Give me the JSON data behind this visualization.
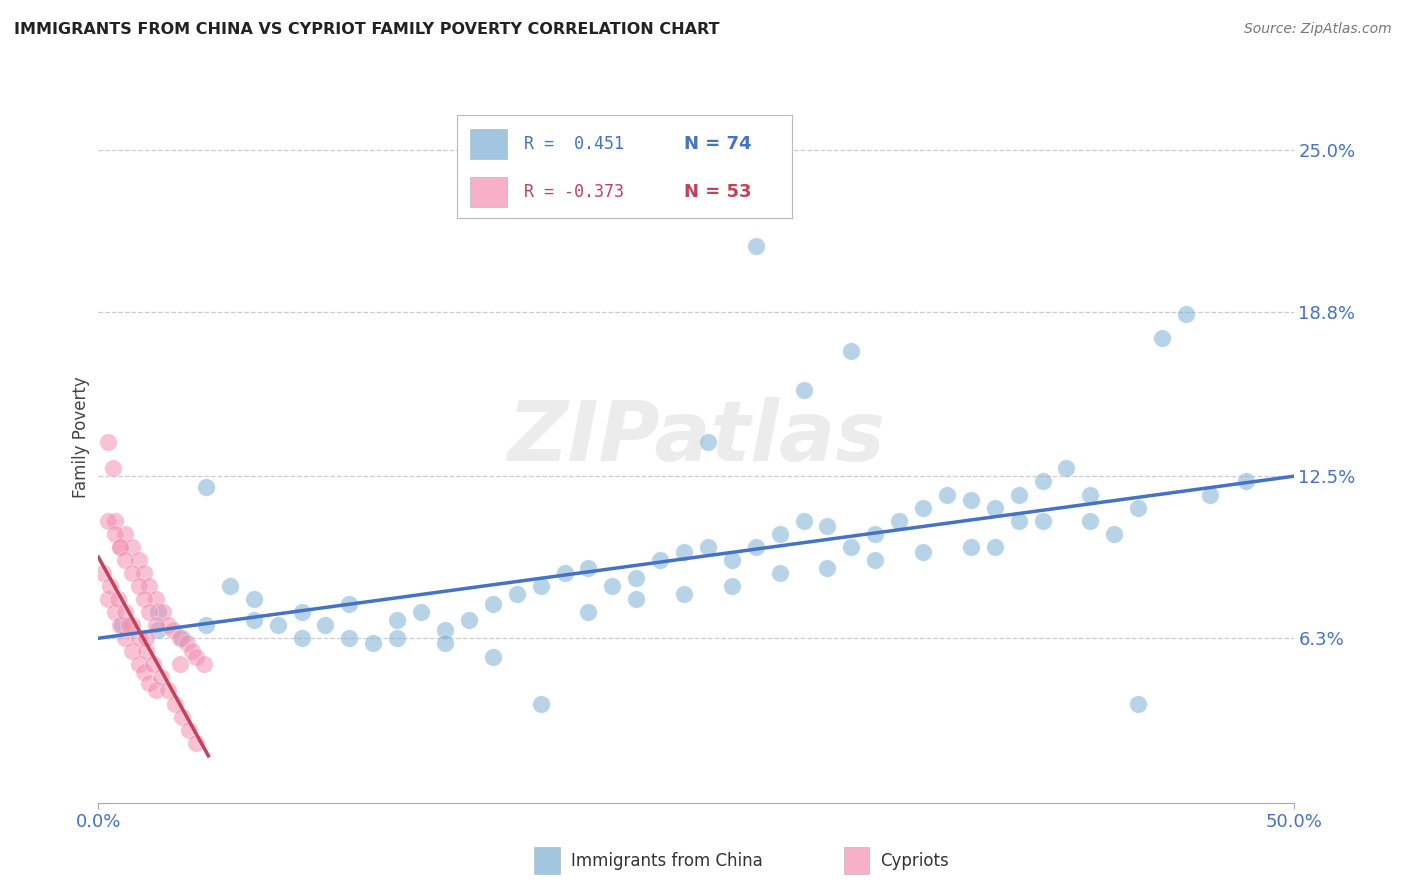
{
  "title": "IMMIGRANTS FROM CHINA VS CYPRIOT FAMILY POVERTY CORRELATION CHART",
  "source": "Source: ZipAtlas.com",
  "ylabel": "Family Poverty",
  "ytick_labels": [
    "6.3%",
    "12.5%",
    "18.8%",
    "25.0%"
  ],
  "ytick_values": [
    0.063,
    0.125,
    0.188,
    0.25
  ],
  "xlim": [
    0.0,
    0.5
  ],
  "ylim": [
    0.0,
    0.28
  ],
  "legend_blue_r": "R =  0.451",
  "legend_blue_n": "N = 74",
  "legend_pink_r": "R = -0.373",
  "legend_pink_n": "N = 53",
  "blue_color": "#7BAFD4",
  "pink_color": "#F48FB1",
  "blue_line_color": "#4472C4",
  "pink_line_color": "#C0435A",
  "tick_color": "#4472C4",
  "grid_color": "#CCCCCC",
  "background_color": "#FFFFFF",
  "watermark": "ZIPatlas",
  "blue_scatter_x": [
    0.01,
    0.045,
    0.035,
    0.055,
    0.025,
    0.065,
    0.075,
    0.085,
    0.095,
    0.105,
    0.115,
    0.125,
    0.135,
    0.145,
    0.155,
    0.165,
    0.175,
    0.185,
    0.195,
    0.205,
    0.215,
    0.225,
    0.235,
    0.245,
    0.255,
    0.265,
    0.275,
    0.285,
    0.295,
    0.305,
    0.315,
    0.325,
    0.335,
    0.345,
    0.355,
    0.365,
    0.375,
    0.385,
    0.395,
    0.405,
    0.415,
    0.425,
    0.435,
    0.445,
    0.455,
    0.025,
    0.045,
    0.065,
    0.085,
    0.105,
    0.125,
    0.145,
    0.165,
    0.185,
    0.205,
    0.225,
    0.245,
    0.265,
    0.285,
    0.305,
    0.325,
    0.345,
    0.365,
    0.385,
    0.275,
    0.295,
    0.315,
    0.255,
    0.375,
    0.395,
    0.415,
    0.435,
    0.465,
    0.48
  ],
  "blue_scatter_y": [
    0.068,
    0.121,
    0.063,
    0.083,
    0.073,
    0.078,
    0.068,
    0.063,
    0.068,
    0.063,
    0.061,
    0.07,
    0.073,
    0.066,
    0.07,
    0.076,
    0.08,
    0.083,
    0.088,
    0.09,
    0.083,
    0.086,
    0.093,
    0.096,
    0.098,
    0.093,
    0.098,
    0.103,
    0.108,
    0.106,
    0.098,
    0.103,
    0.108,
    0.113,
    0.118,
    0.116,
    0.113,
    0.118,
    0.123,
    0.128,
    0.108,
    0.103,
    0.113,
    0.178,
    0.187,
    0.066,
    0.068,
    0.07,
    0.073,
    0.076,
    0.063,
    0.061,
    0.056,
    0.038,
    0.073,
    0.078,
    0.08,
    0.083,
    0.088,
    0.09,
    0.093,
    0.096,
    0.098,
    0.108,
    0.213,
    0.158,
    0.173,
    0.138,
    0.098,
    0.108,
    0.118,
    0.038,
    0.118,
    0.123
  ],
  "pink_scatter_x": [
    0.004,
    0.007,
    0.009,
    0.011,
    0.014,
    0.017,
    0.019,
    0.021,
    0.024,
    0.027,
    0.029,
    0.031,
    0.034,
    0.037,
    0.039,
    0.041,
    0.044,
    0.004,
    0.007,
    0.009,
    0.011,
    0.014,
    0.017,
    0.019,
    0.021,
    0.024,
    0.002,
    0.005,
    0.008,
    0.011,
    0.014,
    0.017,
    0.02,
    0.023,
    0.026,
    0.029,
    0.032,
    0.035,
    0.038,
    0.041,
    0.004,
    0.007,
    0.009,
    0.011,
    0.014,
    0.017,
    0.019,
    0.021,
    0.024,
    0.006,
    0.013,
    0.02,
    0.034
  ],
  "pink_scatter_y": [
    0.138,
    0.108,
    0.098,
    0.103,
    0.098,
    0.093,
    0.088,
    0.083,
    0.078,
    0.073,
    0.068,
    0.066,
    0.063,
    0.061,
    0.058,
    0.056,
    0.053,
    0.078,
    0.073,
    0.068,
    0.063,
    0.058,
    0.053,
    0.05,
    0.046,
    0.043,
    0.088,
    0.083,
    0.078,
    0.073,
    0.068,
    0.063,
    0.058,
    0.053,
    0.048,
    0.043,
    0.038,
    0.033,
    0.028,
    0.023,
    0.108,
    0.103,
    0.098,
    0.093,
    0.088,
    0.083,
    0.078,
    0.073,
    0.068,
    0.128,
    0.068,
    0.063,
    0.053
  ],
  "blue_line_x": [
    0.0,
    0.5
  ],
  "blue_line_y": [
    0.063,
    0.125
  ],
  "pink_line_x": [
    0.0,
    0.046
  ],
  "pink_line_y": [
    0.094,
    0.018
  ]
}
